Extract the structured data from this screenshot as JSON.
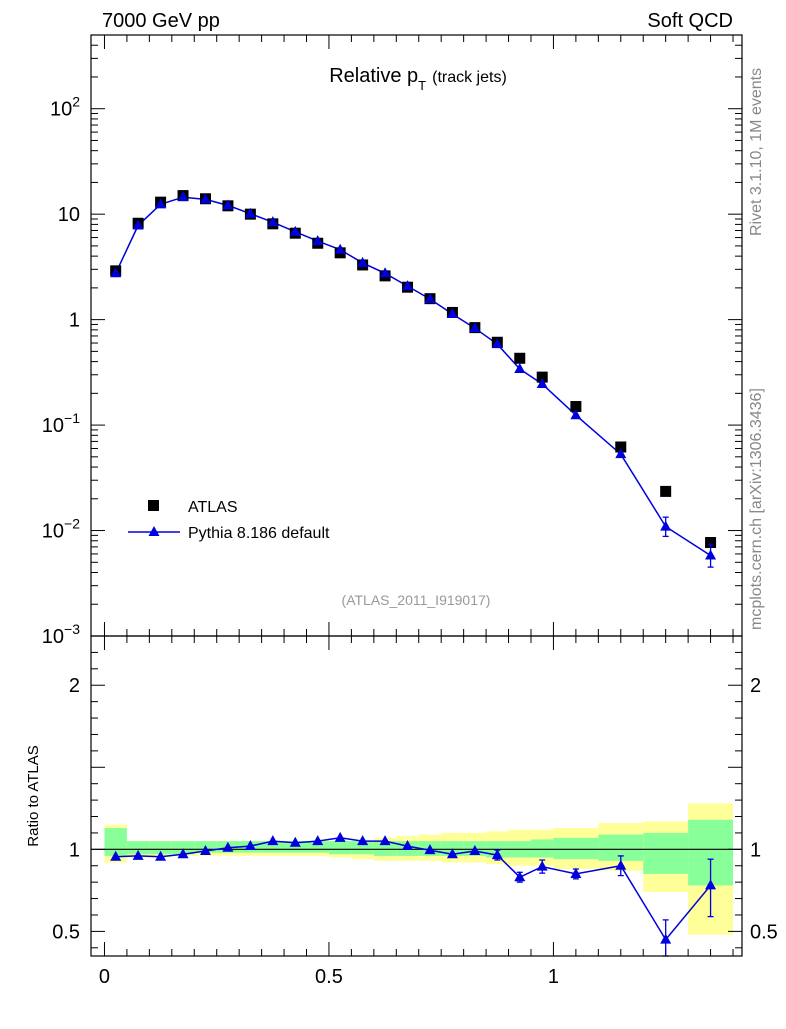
{
  "header": {
    "left": "7000 GeV pp",
    "right": "Soft QCD"
  },
  "side_labels": {
    "rivet": "Rivet 3.1.10,  1M events",
    "site": "mcplots.cern.ch [arXiv:1306.3436]"
  },
  "chart_data": [
    {
      "type": "scatter",
      "title_main": "Relative p",
      "title_sub": "T",
      "title_note": "(track jets)",
      "yscale": "log",
      "ylim": [
        0.001,
        500
      ],
      "xlim": [
        -0.03,
        1.42
      ],
      "ytick_labels": [
        {
          "mantissa": "10",
          "exp": "2"
        },
        {
          "mantissa": "10",
          "exp": ""
        },
        {
          "mantissa": "1",
          "exp": ""
        },
        {
          "mantissa": "10",
          "exp": "−1"
        },
        {
          "mantissa": "10",
          "exp": "−2"
        },
        {
          "mantissa": "10",
          "exp": "−3"
        }
      ],
      "ytick_values": [
        100,
        10,
        1,
        0.1,
        0.01,
        0.001
      ],
      "legend_position": "bottom-left",
      "reference_label": "(ATLAS_2011_I919017)",
      "x": [
        0.025,
        0.075,
        0.125,
        0.175,
        0.225,
        0.275,
        0.325,
        0.375,
        0.425,
        0.475,
        0.525,
        0.575,
        0.625,
        0.675,
        0.725,
        0.775,
        0.825,
        0.875,
        0.925,
        0.975,
        1.05,
        1.15,
        1.25,
        1.35
      ],
      "series": [
        {
          "name": "ATLAS",
          "color": "#000000",
          "marker": "square",
          "values": [
            2.9,
            8.2,
            13.0,
            15.0,
            14.0,
            12.0,
            10.0,
            8.1,
            6.6,
            5.3,
            4.3,
            3.3,
            2.6,
            2.03,
            1.58,
            1.17,
            0.84,
            0.61,
            0.43,
            0.285,
            0.15,
            0.062,
            0.0235,
            0.0077
          ]
        },
        {
          "name": "Pythia 8.186 default",
          "color": "#0000dd",
          "marker": "triangle",
          "values": [
            2.75,
            7.8,
            12.4,
            14.5,
            13.8,
            12.1,
            10.1,
            8.4,
            6.8,
            5.55,
            4.6,
            3.45,
            2.75,
            2.08,
            1.57,
            1.13,
            0.83,
            0.585,
            0.34,
            0.245,
            0.124,
            0.053,
            0.0109,
            0.0058
          ],
          "err_up": [
            0,
            0,
            0,
            0,
            0,
            0,
            0,
            0,
            0,
            0,
            0,
            0,
            0,
            0,
            0,
            0,
            0,
            0,
            0,
            0,
            0,
            0,
            0.0025,
            0.0016
          ],
          "err_down": [
            0,
            0,
            0,
            0,
            0,
            0,
            0,
            0,
            0,
            0,
            0,
            0,
            0,
            0,
            0,
            0,
            0,
            0,
            0,
            0,
            0,
            0,
            0.0021,
            0.0013
          ]
        }
      ]
    },
    {
      "type": "line",
      "ylabel": "Ratio to ATLAS",
      "ylim": [
        0.35,
        2.3
      ],
      "xlim": [
        -0.03,
        1.42
      ],
      "yticks": [
        0.5,
        1,
        2
      ],
      "ytick_labels": [
        "0.5",
        "1",
        "2"
      ],
      "xticks": [
        0,
        0.5,
        1
      ],
      "xtick_labels": [
        "0",
        "0.5",
        "1"
      ],
      "bin_edges": [
        0,
        0.05,
        0.1,
        0.15,
        0.2,
        0.25,
        0.3,
        0.35,
        0.4,
        0.45,
        0.5,
        0.55,
        0.6,
        0.65,
        0.7,
        0.75,
        0.8,
        0.85,
        0.9,
        0.95,
        1.0,
        1.1,
        1.2,
        1.3,
        1.4
      ],
      "band_colors": {
        "inner": "#88ff99",
        "outer": "#ffff99"
      },
      "band_inner": [
        0.96,
        0.97,
        0.97,
        0.97,
        0.98,
        0.98,
        0.98,
        0.98,
        0.98,
        0.98,
        0.97,
        0.97,
        0.96,
        0.96,
        0.96,
        0.96,
        0.96,
        0.95,
        0.95,
        0.95,
        0.94,
        0.93,
        0.85,
        0.78
      ],
      "band_inner_hi": [
        1.13,
        1.05,
        1.05,
        1.05,
        1.05,
        1.05,
        1.05,
        1.05,
        1.05,
        1.05,
        1.05,
        1.05,
        1.05,
        1.05,
        1.05,
        1.05,
        1.05,
        1.05,
        1.05,
        1.06,
        1.07,
        1.09,
        1.1,
        1.18
      ],
      "band_outer": [
        0.92,
        0.95,
        0.95,
        0.96,
        0.96,
        0.96,
        0.96,
        0.96,
        0.96,
        0.96,
        0.95,
        0.94,
        0.93,
        0.93,
        0.93,
        0.92,
        0.92,
        0.91,
        0.9,
        0.9,
        0.88,
        0.87,
        0.74,
        0.48
      ],
      "band_outer_hi": [
        1.15,
        1.05,
        1.05,
        1.05,
        1.05,
        1.05,
        1.05,
        1.05,
        1.05,
        1.05,
        1.05,
        1.05,
        1.07,
        1.08,
        1.09,
        1.1,
        1.1,
        1.11,
        1.12,
        1.12,
        1.13,
        1.16,
        1.17,
        1.28
      ],
      "x": [
        0.025,
        0.075,
        0.125,
        0.175,
        0.225,
        0.275,
        0.325,
        0.375,
        0.425,
        0.475,
        0.525,
        0.575,
        0.625,
        0.675,
        0.725,
        0.775,
        0.825,
        0.875,
        0.925,
        0.975,
        1.05,
        1.15,
        1.25,
        1.35
      ],
      "series": [
        {
          "name": "Pythia 8.186 default",
          "color": "#0000dd",
          "values": [
            0.955,
            0.96,
            0.955,
            0.97,
            0.99,
            1.01,
            1.02,
            1.05,
            1.04,
            1.05,
            1.07,
            1.05,
            1.05,
            1.02,
            0.995,
            0.97,
            0.99,
            0.965,
            0.83,
            0.895,
            0.85,
            0.9,
            0.45,
            0.78
          ],
          "err_up": [
            0,
            0,
            0,
            0,
            0,
            0,
            0,
            0,
            0,
            0,
            0,
            0,
            0,
            0,
            0,
            0,
            0,
            0.03,
            0.03,
            0.04,
            0.03,
            0.06,
            0.12,
            0.16
          ],
          "err_down": [
            0,
            0,
            0,
            0,
            0,
            0,
            0,
            0,
            0,
            0,
            0,
            0,
            0,
            0,
            0,
            0,
            0,
            0.03,
            0.03,
            0.04,
            0.03,
            0.06,
            0.1,
            0.19
          ]
        }
      ]
    }
  ]
}
